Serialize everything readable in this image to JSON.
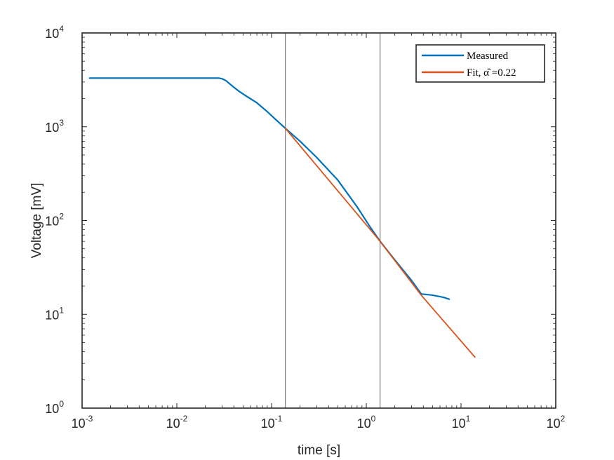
{
  "chart_data": {
    "type": "line",
    "title": "",
    "xlabel": "time [s]",
    "ylabel": "Voltage [mV]",
    "xscale": "log",
    "yscale": "log",
    "xlim": [
      0.001,
      100
    ],
    "ylim": [
      1,
      10000
    ],
    "grid": false,
    "legend_location": "top-right",
    "x_ticks": [
      {
        "base": "10",
        "exp": "-3"
      },
      {
        "base": "10",
        "exp": "-2"
      },
      {
        "base": "10",
        "exp": "-1"
      },
      {
        "base": "10",
        "exp": "0"
      },
      {
        "base": "10",
        "exp": "1"
      },
      {
        "base": "10",
        "exp": "2"
      }
    ],
    "y_ticks": [
      {
        "base": "10",
        "exp": "0"
      },
      {
        "base": "10",
        "exp": "1"
      },
      {
        "base": "10",
        "exp": "2"
      },
      {
        "base": "10",
        "exp": "3"
      },
      {
        "base": "10",
        "exp": "4"
      }
    ],
    "vertical_lines": [
      0.14,
      1.4
    ],
    "series": [
      {
        "name": "Measured",
        "color": "#0072BD",
        "x": [
          0.0012,
          0.002,
          0.005,
          0.01,
          0.02,
          0.028,
          0.03,
          0.033,
          0.038,
          0.045,
          0.055,
          0.07,
          0.09,
          0.11,
          0.14,
          0.2,
          0.3,
          0.5,
          0.8,
          1.1,
          1.4,
          2.0,
          3.0,
          3.8,
          5.0,
          6.5,
          7.5
        ],
        "y": [
          3300,
          3300,
          3300,
          3300,
          3300,
          3300,
          3250,
          3100,
          2750,
          2400,
          2100,
          1800,
          1450,
          1200,
          960,
          700,
          470,
          270,
          140,
          85,
          60,
          38,
          23,
          16.5,
          16,
          15.2,
          14.5
        ]
      },
      {
        "name": "Fit, α̂ =0.22",
        "color": "#D95319",
        "x": [
          0.14,
          1.4,
          3.8,
          14
        ],
        "y": [
          960,
          60,
          16,
          3.5
        ]
      }
    ]
  }
}
